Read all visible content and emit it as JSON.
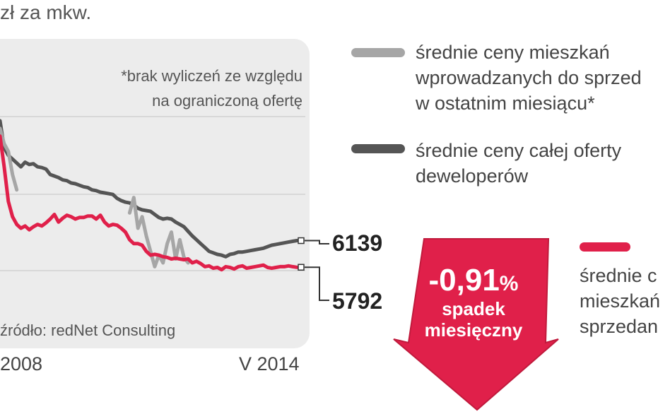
{
  "unit_label": "zł za mkw.",
  "note_line1": "*brak wyliczeń ze względu",
  "note_line2": "na ograniczoną ofertę",
  "source": "źródło: redNet Consulting",
  "x_start_label": "2008",
  "x_end_label": "V 2014",
  "end_value_dark": "6139",
  "end_value_red": "5792",
  "legend": [
    {
      "color": "#a6a6a6",
      "lines": [
        "średnie ceny mieszkań",
        "wprowadzanych do sprzed",
        "w ostatnim miesiącu*"
      ]
    },
    {
      "color": "#555555",
      "lines": [
        "średnie ceny całej oferty",
        "deweloperów"
      ]
    },
    {
      "color": "#e0204a",
      "lines": [
        "średnie c",
        "mieszkań",
        "sprzedan"
      ]
    }
  ],
  "badge": {
    "percent": "-0,91",
    "percent_sign": "%",
    "line1": "spadek",
    "line2": "miesięczny"
  },
  "chart_data": {
    "type": "line",
    "x_range": [
      "2008",
      "V 2014"
    ],
    "series": [
      {
        "name": "średnie ceny całej oferty deweloperów",
        "color": "#555555",
        "values": [
          7700,
          7350,
          7250,
          7200,
          7150,
          7100,
          7160,
          7130,
          7140,
          7100,
          7090,
          7070,
          7000,
          6980,
          6960,
          6930,
          6920,
          6890,
          6880,
          6860,
          6840,
          6830,
          6800,
          6790,
          6770,
          6760,
          6750,
          6740,
          6690,
          6660,
          6640,
          6630,
          6600,
          6560,
          6540,
          6530,
          6520,
          6480,
          6440,
          6420,
          6430,
          6420,
          6380,
          6350,
          6320,
          6260,
          6200,
          6150,
          6100,
          6050,
          6000,
          5980,
          5960,
          5950,
          5930,
          5960,
          5970,
          5990,
          5990,
          6000,
          6010,
          6020,
          6030,
          6040,
          6060,
          6080,
          6090,
          6100,
          6110,
          6120,
          6130,
          6139
        ]
      },
      {
        "name": "średnie ceny mieszkań wprowadzanych do sprzedaży w ostatnim miesiącu",
        "color": "#a6a6a6",
        "values": [
          7600,
          7400,
          7300,
          7000,
          6800,
          null,
          null,
          null,
          null,
          null,
          null,
          null,
          null,
          null,
          null,
          null,
          null,
          null,
          null,
          null,
          null,
          null,
          null,
          null,
          null,
          null,
          null,
          null,
          null,
          null,
          null,
          6500,
          6700,
          6300,
          6450,
          6200,
          6000,
          5800,
          5950,
          5850,
          6100,
          6250,
          5900,
          6150,
          5920,
          5850,
          null,
          null,
          null,
          null,
          null,
          null,
          null,
          null,
          null,
          null,
          null,
          null,
          null,
          null,
          null,
          null,
          null,
          null,
          null,
          null,
          null,
          null,
          null,
          null,
          null,
          null
        ]
      },
      {
        "name": "średnie ceny mieszkań sprzedanych",
        "color": "#e0204a",
        "values": [
          7500,
          7100,
          6650,
          6450,
          6350,
          6300,
          6330,
          6280,
          6320,
          6350,
          6330,
          6370,
          6420,
          6480,
          6380,
          6430,
          6470,
          6450,
          6420,
          6440,
          6440,
          6460,
          6460,
          6420,
          6470,
          6380,
          6330,
          6350,
          6340,
          6300,
          6250,
          6150,
          6100,
          6100,
          6080,
          6000,
          5950,
          5960,
          5950,
          5930,
          5920,
          5900,
          5910,
          5900,
          5890,
          5900,
          5850,
          5870,
          5840,
          5800,
          5810,
          5780,
          5790,
          5760,
          5800,
          5790,
          5770,
          5800,
          5810,
          5780,
          5790,
          5800,
          5810,
          5820,
          5790,
          5780,
          5790,
          5800,
          5800,
          5810,
          5800,
          5792
        ]
      }
    ]
  }
}
